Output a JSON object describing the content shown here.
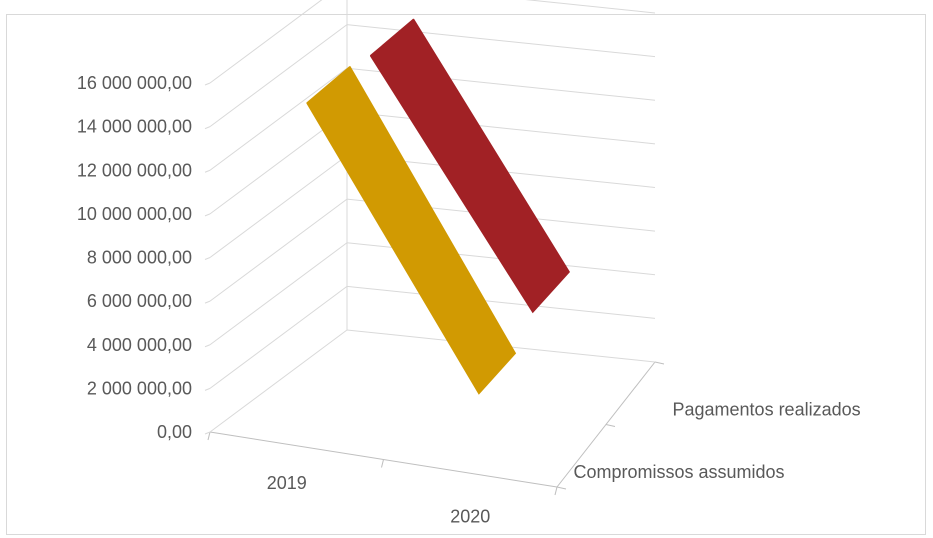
{
  "chart_data": {
    "type": "line",
    "style": "3d",
    "categories": [
      "2019",
      "2020"
    ],
    "series": [
      {
        "name": "Compromissos assumidos",
        "values": [
          15300000,
          3200000
        ],
        "color": "#D19A02"
      },
      {
        "name": "Pagamentos realizados",
        "values": [
          15000000,
          4200000
        ],
        "color": "#A12125"
      }
    ],
    "y_ticks": [
      "0,00",
      "2 000 000,00",
      "4 000 000,00",
      "6 000 000,00",
      "8 000 000,00",
      "10 000 000,00",
      "12 000 000,00",
      "14 000 000,00",
      "16 000 000,00"
    ],
    "ylim": [
      0,
      16000000
    ],
    "grid": true,
    "legend": "none",
    "title": "",
    "xlabel": "",
    "ylabel": ""
  }
}
